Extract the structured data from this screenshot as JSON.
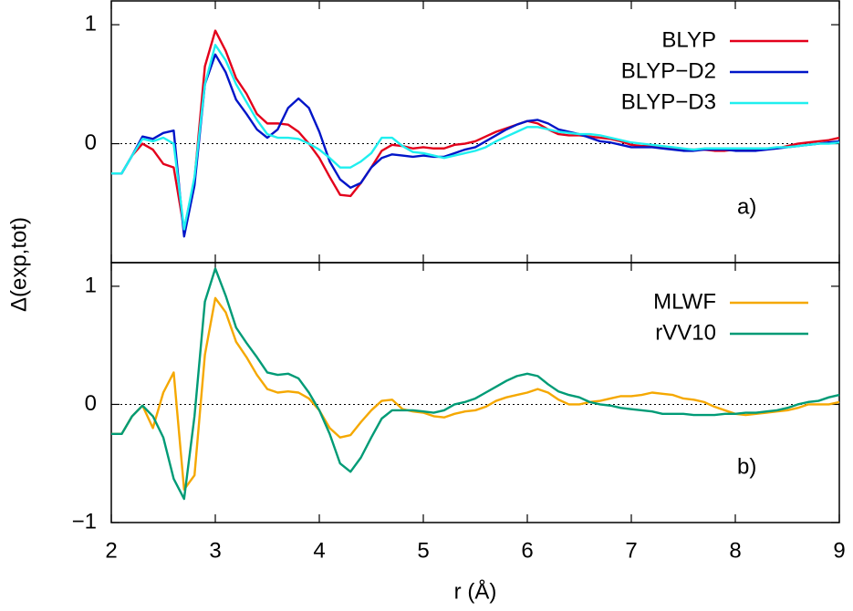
{
  "chart_data": [
    {
      "type": "line",
      "y_label": "Δ(exp,tot)",
      "annotation": "a)",
      "x": [
        2.0,
        2.1,
        2.2,
        2.3,
        2.4,
        2.5,
        2.6,
        2.7,
        2.8,
        2.9,
        3.0,
        3.1,
        3.2,
        3.3,
        3.4,
        3.5,
        3.6,
        3.7,
        3.8,
        3.9,
        4.0,
        4.1,
        4.2,
        4.3,
        4.4,
        4.5,
        4.6,
        4.7,
        4.8,
        4.9,
        5.0,
        5.1,
        5.2,
        5.3,
        5.4,
        5.5,
        5.6,
        5.7,
        5.8,
        5.9,
        6.0,
        6.1,
        6.2,
        6.3,
        6.4,
        6.5,
        6.6,
        6.7,
        6.8,
        6.9,
        7.0,
        7.1,
        7.2,
        7.3,
        7.4,
        7.5,
        7.6,
        7.7,
        7.8,
        7.9,
        8.0,
        8.1,
        8.2,
        8.3,
        8.4,
        8.5,
        8.6,
        8.7,
        8.8,
        8.9,
        9.0
      ],
      "series": [
        {
          "name": "BLYP",
          "color": "#e3001b",
          "values": [
            -0.25,
            -0.25,
            -0.1,
            0.0,
            -0.05,
            -0.17,
            -0.2,
            -0.72,
            -0.3,
            0.65,
            0.95,
            0.78,
            0.55,
            0.42,
            0.25,
            0.17,
            0.17,
            0.16,
            0.1,
            0.0,
            -0.12,
            -0.28,
            -0.43,
            -0.44,
            -0.33,
            -0.2,
            -0.06,
            -0.01,
            -0.02,
            -0.04,
            -0.03,
            -0.04,
            -0.04,
            -0.01,
            0.0,
            0.02,
            0.06,
            0.1,
            0.13,
            0.16,
            0.19,
            0.17,
            0.12,
            0.08,
            0.07,
            0.07,
            0.06,
            0.05,
            0.04,
            0.02,
            -0.01,
            -0.02,
            -0.02,
            -0.03,
            -0.04,
            -0.05,
            -0.05,
            -0.05,
            -0.06,
            -0.06,
            -0.05,
            -0.06,
            -0.05,
            -0.04,
            -0.04,
            -0.02,
            0.0,
            0.01,
            0.02,
            0.03,
            0.05
          ]
        },
        {
          "name": "BLYP−D2",
          "color": "#0015c8",
          "values": [
            -0.25,
            -0.25,
            -0.1,
            0.06,
            0.04,
            0.09,
            0.11,
            -0.78,
            -0.35,
            0.5,
            0.75,
            0.6,
            0.37,
            0.25,
            0.12,
            0.05,
            0.12,
            0.3,
            0.38,
            0.3,
            0.1,
            -0.15,
            -0.3,
            -0.37,
            -0.33,
            -0.2,
            -0.12,
            -0.09,
            -0.1,
            -0.11,
            -0.1,
            -0.11,
            -0.11,
            -0.08,
            -0.05,
            -0.03,
            0.02,
            0.07,
            0.12,
            0.16,
            0.19,
            0.2,
            0.17,
            0.12,
            0.1,
            0.08,
            0.05,
            0.02,
            0.01,
            -0.01,
            -0.03,
            -0.03,
            -0.03,
            -0.04,
            -0.05,
            -0.06,
            -0.06,
            -0.05,
            -0.05,
            -0.05,
            -0.06,
            -0.06,
            -0.06,
            -0.05,
            -0.04,
            -0.03,
            -0.02,
            -0.01,
            0.0,
            0.01,
            0.02
          ]
        },
        {
          "name": "BLYP−D3",
          "color": "#1fefef",
          "values": [
            -0.25,
            -0.25,
            -0.1,
            0.04,
            0.02,
            0.05,
            0.0,
            -0.72,
            -0.28,
            0.5,
            0.83,
            0.7,
            0.5,
            0.35,
            0.2,
            0.08,
            0.05,
            0.05,
            0.04,
            0.0,
            -0.05,
            -0.12,
            -0.2,
            -0.2,
            -0.15,
            -0.08,
            0.05,
            0.05,
            -0.02,
            -0.07,
            -0.08,
            -0.1,
            -0.12,
            -0.1,
            -0.08,
            -0.06,
            -0.03,
            0.02,
            0.06,
            0.1,
            0.14,
            0.14,
            0.12,
            0.1,
            0.09,
            0.08,
            0.08,
            0.07,
            0.05,
            0.03,
            0.01,
            0.0,
            -0.01,
            -0.02,
            -0.03,
            -0.04,
            -0.05,
            -0.04,
            -0.04,
            -0.04,
            -0.04,
            -0.04,
            -0.04,
            -0.04,
            -0.03,
            -0.03,
            -0.02,
            -0.01,
            0.0,
            0.0,
            0.01
          ]
        }
      ],
      "xlim": [
        2,
        9
      ],
      "ylim": [
        -1,
        1.2
      ],
      "yticks": [
        0,
        1
      ],
      "legend": "upper right"
    },
    {
      "type": "line",
      "x_label": "r (Å)",
      "annotation": "b)",
      "x": [
        2.0,
        2.1,
        2.2,
        2.3,
        2.4,
        2.5,
        2.6,
        2.7,
        2.8,
        2.9,
        3.0,
        3.1,
        3.2,
        3.3,
        3.4,
        3.5,
        3.6,
        3.7,
        3.8,
        3.9,
        4.0,
        4.1,
        4.2,
        4.3,
        4.4,
        4.5,
        4.6,
        4.7,
        4.8,
        4.9,
        5.0,
        5.1,
        5.2,
        5.3,
        5.4,
        5.5,
        5.6,
        5.7,
        5.8,
        5.9,
        6.0,
        6.1,
        6.2,
        6.3,
        6.4,
        6.5,
        6.6,
        6.7,
        6.8,
        6.9,
        7.0,
        7.1,
        7.2,
        7.3,
        7.4,
        7.5,
        7.6,
        7.7,
        7.8,
        7.9,
        8.0,
        8.1,
        8.2,
        8.3,
        8.4,
        8.5,
        8.6,
        8.7,
        8.8,
        8.9,
        9.0
      ],
      "series": [
        {
          "name": "MLWF",
          "color": "#f5a800",
          "values": [
            -0.25,
            -0.25,
            -0.1,
            -0.01,
            -0.2,
            0.1,
            0.27,
            -0.72,
            -0.6,
            0.42,
            0.9,
            0.78,
            0.53,
            0.4,
            0.25,
            0.13,
            0.1,
            0.11,
            0.1,
            0.05,
            -0.05,
            -0.2,
            -0.28,
            -0.26,
            -0.15,
            -0.05,
            0.03,
            0.04,
            -0.04,
            -0.06,
            -0.07,
            -0.1,
            -0.11,
            -0.08,
            -0.06,
            -0.05,
            -0.02,
            0.03,
            0.06,
            0.08,
            0.1,
            0.13,
            0.1,
            0.04,
            0.0,
            0.0,
            0.02,
            0.03,
            0.05,
            0.07,
            0.07,
            0.08,
            0.1,
            0.09,
            0.08,
            0.05,
            0.04,
            0.02,
            -0.02,
            -0.05,
            -0.08,
            -0.09,
            -0.08,
            -0.07,
            -0.06,
            -0.05,
            -0.03,
            0.0,
            0.0,
            0.0,
            0.02
          ]
        },
        {
          "name": "rVV10",
          "color": "#009b76",
          "values": [
            -0.25,
            -0.25,
            -0.1,
            -0.01,
            -0.1,
            -0.28,
            -0.63,
            -0.8,
            -0.1,
            0.87,
            1.15,
            0.92,
            0.65,
            0.52,
            0.4,
            0.27,
            0.25,
            0.26,
            0.22,
            0.1,
            -0.05,
            -0.25,
            -0.5,
            -0.57,
            -0.45,
            -0.28,
            -0.12,
            -0.05,
            -0.05,
            -0.05,
            -0.06,
            -0.07,
            -0.05,
            0.0,
            0.02,
            0.05,
            0.1,
            0.15,
            0.2,
            0.24,
            0.26,
            0.24,
            0.17,
            0.11,
            0.08,
            0.06,
            0.02,
            0.0,
            -0.01,
            -0.03,
            -0.04,
            -0.05,
            -0.06,
            -0.08,
            -0.08,
            -0.08,
            -0.09,
            -0.09,
            -0.09,
            -0.08,
            -0.08,
            -0.07,
            -0.07,
            -0.06,
            -0.05,
            -0.03,
            0.0,
            0.02,
            0.03,
            0.06,
            0.08
          ]
        }
      ],
      "xlim": [
        2,
        9
      ],
      "ylim": [
        -1,
        1.2
      ],
      "xticks": [
        2,
        3,
        4,
        5,
        6,
        7,
        8,
        9
      ],
      "yticks": [
        {
          "value": -1,
          "label": "−1"
        },
        0,
        1
      ],
      "legend": "upper right"
    }
  ]
}
